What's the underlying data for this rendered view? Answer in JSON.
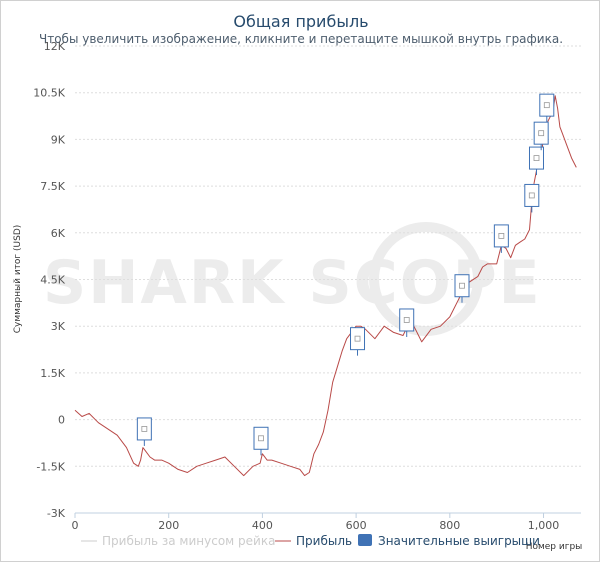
{
  "chart_data": {
    "type": "line",
    "title": "Общая прибыль",
    "subtitle": "Чтобы увеличить изображение, кликните и перетащите мышкой внутрь графика.",
    "ylabel": "Суммарный итог (USD)",
    "xlabel": "Номер игры",
    "watermark": "SHARK SCOPE",
    "xlim": [
      0,
      1080
    ],
    "ylim": [
      -3000,
      12000
    ],
    "x_ticks": [
      0,
      200,
      400,
      600,
      800,
      1000
    ],
    "x_tick_labels": [
      "0",
      "200",
      "400",
      "600",
      "800",
      "1,000"
    ],
    "y_ticks": [
      12000,
      10500,
      9000,
      7500,
      6000,
      4500,
      3000,
      1500,
      0,
      -1500,
      -3000
    ],
    "y_tick_labels": [
      "12K",
      "10.5K",
      "9K",
      "7.5K",
      "6K",
      "4.5K",
      "3K",
      "1.5K",
      "0",
      "-1.5K",
      "-3K"
    ],
    "grid": true,
    "legend_position": "bottom",
    "legend": [
      {
        "label": "Прибыль за минусом рейка",
        "color": "#cccccc",
        "symbol": "line",
        "hidden": true
      },
      {
        "label": "Прибыль",
        "color": "#b94a48",
        "symbol": "line"
      },
      {
        "label": "Значительные выигрыши",
        "color": "#3f72b5",
        "symbol": "box"
      }
    ],
    "series": [
      {
        "name": "Прибыль",
        "color": "#b94a48",
        "x": [
          0,
          15,
          30,
          50,
          70,
          90,
          110,
          125,
          135,
          140,
          145,
          150,
          160,
          170,
          185,
          200,
          220,
          240,
          260,
          280,
          300,
          320,
          340,
          360,
          380,
          395,
          400,
          410,
          420,
          440,
          460,
          480,
          490,
          500,
          510,
          520,
          530,
          540,
          550,
          560,
          570,
          580,
          590,
          600,
          610,
          620,
          640,
          660,
          680,
          700,
          710,
          720,
          730,
          740,
          760,
          780,
          800,
          820,
          830,
          840,
          860,
          870,
          880,
          900,
          910,
          920,
          930,
          940,
          950,
          960,
          970,
          975,
          980,
          985,
          990,
          995,
          1000,
          1010,
          1020,
          1025,
          1030,
          1035,
          1040,
          1050,
          1060,
          1070
        ],
        "y": [
          300,
          100,
          200,
          -100,
          -300,
          -500,
          -900,
          -1400,
          -1500,
          -1300,
          -900,
          -1000,
          -1200,
          -1300,
          -1300,
          -1400,
          -1600,
          -1700,
          -1500,
          -1400,
          -1300,
          -1200,
          -1500,
          -1800,
          -1500,
          -1400,
          -1100,
          -1300,
          -1300,
          -1400,
          -1500,
          -1600,
          -1800,
          -1700,
          -1100,
          -800,
          -400,
          300,
          1200,
          1700,
          2200,
          2600,
          2800,
          3000,
          3000,
          2900,
          2600,
          3000,
          2800,
          2700,
          3000,
          3100,
          2800,
          2500,
          2900,
          3000,
          3300,
          3900,
          4200,
          4400,
          4600,
          4900,
          5000,
          5000,
          5600,
          5500,
          5200,
          5600,
          5700,
          5800,
          6100,
          7000,
          7600,
          8000,
          8600,
          8400,
          9100,
          9600,
          9900,
          10400,
          10000,
          9400,
          9200,
          8800,
          8400,
          8100
        ]
      }
    ],
    "significant_wins": [
      {
        "x": 148,
        "y": -300
      },
      {
        "x": 397,
        "y": -600
      },
      {
        "x": 603,
        "y": 2600
      },
      {
        "x": 708,
        "y": 3200
      },
      {
        "x": 826,
        "y": 4300
      },
      {
        "x": 910,
        "y": 5900
      },
      {
        "x": 975,
        "y": 7200
      },
      {
        "x": 985,
        "y": 8400
      },
      {
        "x": 995,
        "y": 9200
      },
      {
        "x": 1007,
        "y": 10100
      }
    ]
  }
}
